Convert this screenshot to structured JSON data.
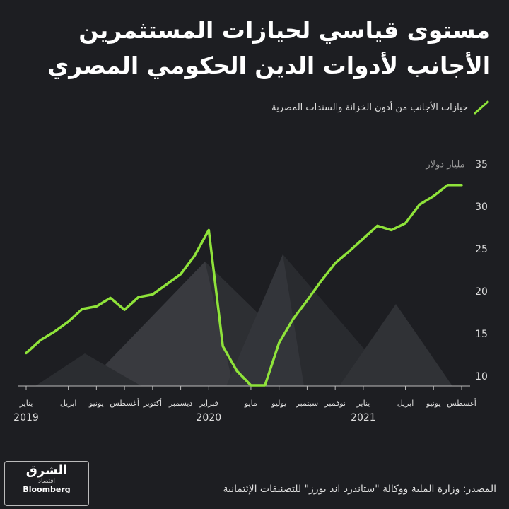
{
  "chart_data": {
    "type": "line",
    "title": [
      "مستوى قياسي لحيازات المستثمرين",
      "الأجانب لأدوات الدين الحكومي المصري"
    ],
    "y_unit": "مليار دولار",
    "categories": [
      "يناير",
      null,
      null,
      "ابريل",
      null,
      "يونيو",
      null,
      "أغسطس",
      null,
      "أكتوبر",
      null,
      "ديسمبر",
      null,
      "فبراير",
      null,
      null,
      "مايو",
      null,
      "يوليو",
      null,
      "سبتمبر",
      null,
      "نوفمبر",
      null,
      "يناير",
      null,
      null,
      "ابريل",
      null,
      "يونيو",
      null,
      "أغسطس"
    ],
    "years": [
      2019,
      2020,
      2021
    ],
    "series": [
      {
        "name": "حيازات الأجانب من أذون الخزانة والسندات المصرية",
        "color": "#8fe33a",
        "values": [
          12.8,
          14.3,
          15.3,
          16.5,
          18.0,
          18.3,
          19.3,
          17.9,
          19.4,
          19.7,
          20.9,
          22.1,
          24.3,
          27.3,
          13.6,
          10.7,
          9.0,
          9.0,
          14.0,
          16.8,
          19.0,
          21.3,
          23.4,
          24.8,
          26.3,
          27.8,
          27.3,
          28.1,
          30.3,
          31.3,
          32.6,
          32.6
        ]
      }
    ],
    "ylim": [
      9,
      35
    ],
    "yticks": [
      10,
      15,
      20,
      25,
      30,
      35
    ],
    "source": "المصدر:  وزارة الملية ووكالة \"ستاندرد اند بورز\" للتصنيفات الإئتمانية",
    "logo": {
      "brand": "الشرق",
      "section": "اقتصاد",
      "partner": "Bloomberg"
    }
  }
}
